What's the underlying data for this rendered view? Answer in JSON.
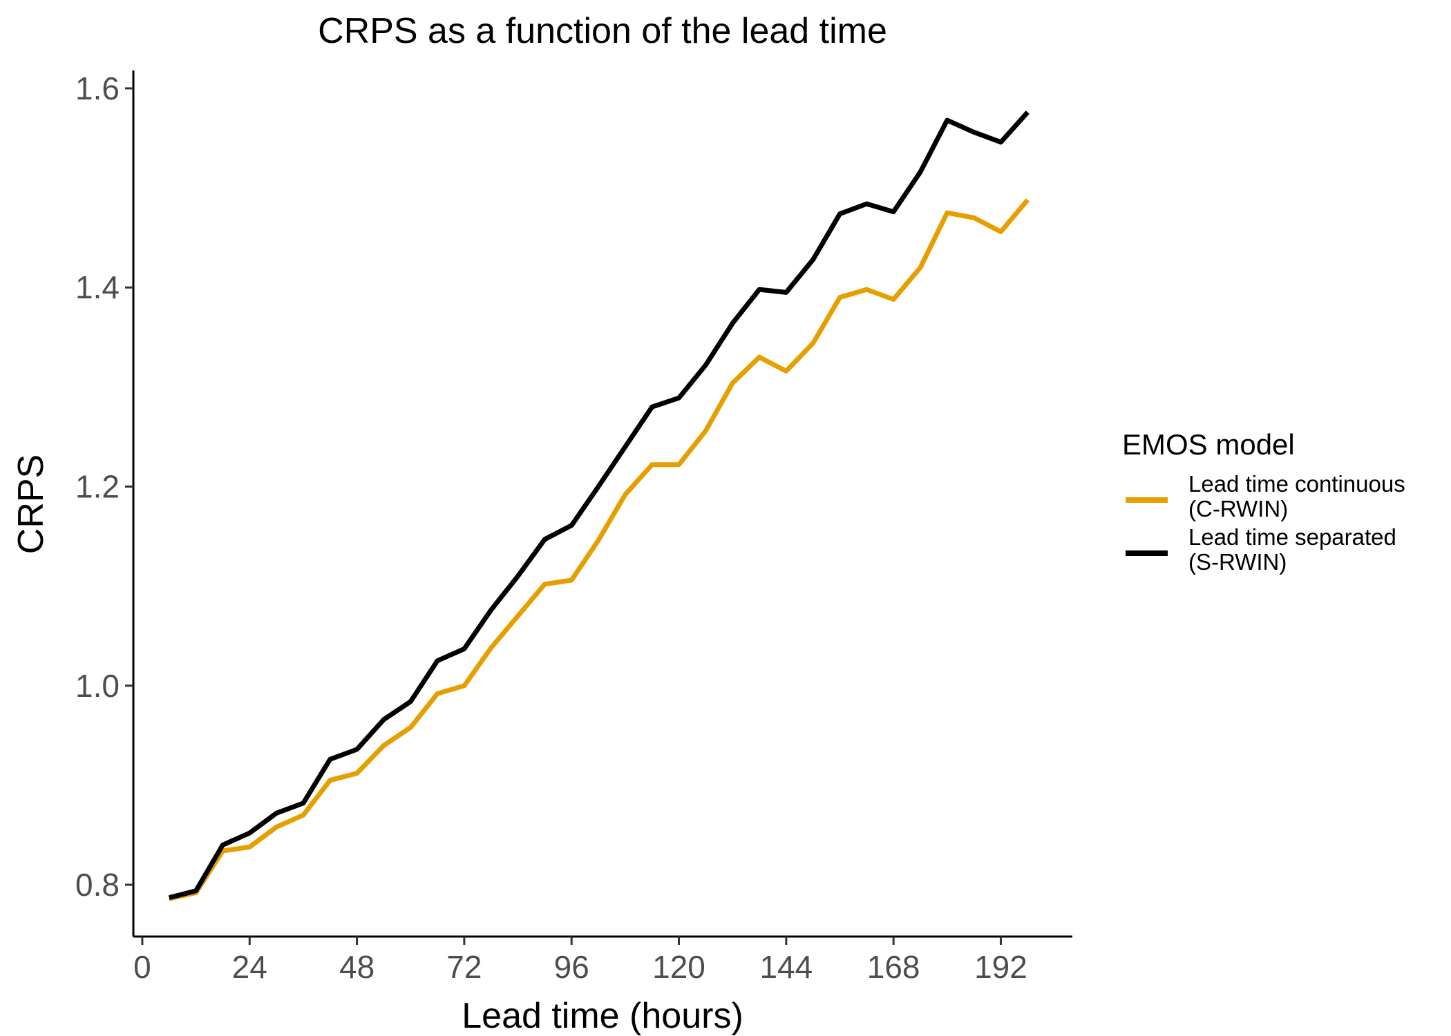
{
  "chart_data": {
    "type": "line",
    "title": "CRPS as a function of the lead time",
    "xlabel": "Lead time (hours)",
    "ylabel": "CRPS",
    "xlim": [
      -2,
      208
    ],
    "ylim": [
      0.748,
      1.618
    ],
    "xticks": [
      0,
      24,
      48,
      72,
      96,
      120,
      144,
      168,
      192
    ],
    "yticks": [
      0.8,
      1.0,
      1.2,
      1.4,
      1.6
    ],
    "ytick_labels": [
      "0.8",
      "1.0",
      "1.2",
      "1.4",
      "1.6"
    ],
    "grid": false,
    "legend": {
      "title": "EMOS model",
      "position": "right"
    },
    "x": [
      6,
      12,
      18,
      24,
      30,
      36,
      42,
      48,
      54,
      60,
      66,
      72,
      78,
      84,
      90,
      96,
      102,
      108,
      114,
      120,
      126,
      132,
      138,
      144,
      150,
      156,
      162,
      168,
      174,
      180,
      186,
      192,
      198
    ],
    "series": [
      {
        "name": "Lead time continuous (C-RWIN)",
        "label_lines": [
          "Lead time continuous",
          "(C-RWIN)"
        ],
        "color": "#E69F00",
        "values": [
          0.786,
          0.792,
          0.834,
          0.838,
          0.858,
          0.87,
          0.905,
          0.912,
          0.94,
          0.958,
          0.992,
          1.0,
          1.038,
          1.07,
          1.102,
          1.106,
          1.146,
          1.192,
          1.222,
          1.222,
          1.256,
          1.304,
          1.33,
          1.316,
          1.344,
          1.39,
          1.398,
          1.388,
          1.42,
          1.475,
          1.47,
          1.456,
          1.488
        ]
      },
      {
        "name": "Lead time separated (S-RWIN)",
        "label_lines": [
          "Lead time separated",
          "(S-RWIN)"
        ],
        "color": "#000000",
        "values": [
          0.787,
          0.794,
          0.84,
          0.852,
          0.872,
          0.882,
          0.926,
          0.936,
          0.966,
          0.984,
          1.025,
          1.037,
          1.076,
          1.11,
          1.147,
          1.161,
          1.2,
          1.24,
          1.28,
          1.289,
          1.322,
          1.364,
          1.398,
          1.395,
          1.428,
          1.474,
          1.484,
          1.476,
          1.516,
          1.568,
          1.556,
          1.546,
          1.576
        ]
      }
    ]
  }
}
